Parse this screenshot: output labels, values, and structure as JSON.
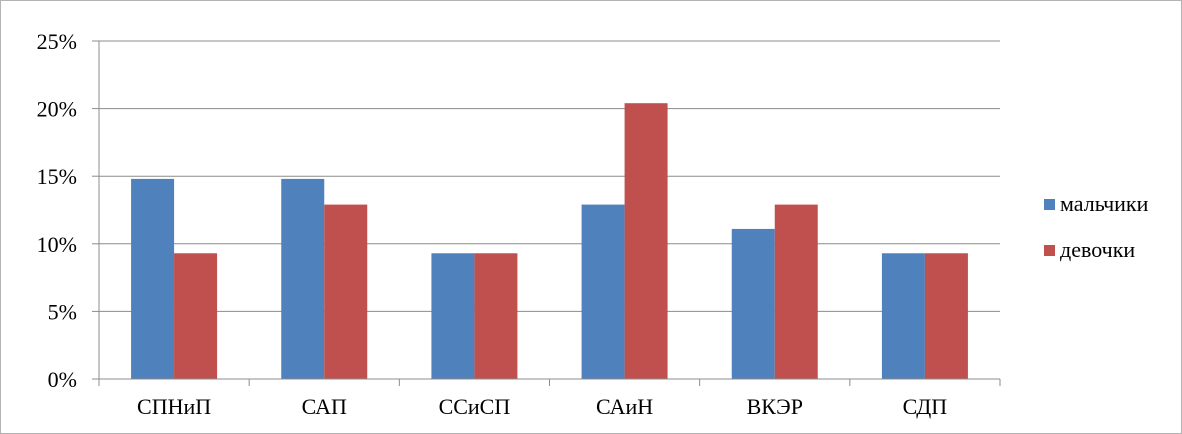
{
  "chart_data": {
    "type": "bar",
    "categories": [
      "СПНиП",
      "САП",
      "ССиСП",
      "САиН",
      "ВКЭР",
      "СДП"
    ],
    "series": [
      {
        "name": "мальчики",
        "color": "#4f81bd",
        "values": [
          14.8,
          14.8,
          9.3,
          12.9,
          11.1,
          9.3
        ]
      },
      {
        "name": "девочки",
        "color": "#c0504d",
        "values": [
          9.3,
          12.9,
          9.3,
          20.4,
          12.9,
          9.3
        ]
      }
    ],
    "ylim": [
      0,
      25
    ],
    "yticks": [
      0,
      5,
      10,
      15,
      20,
      25
    ],
    "ytick_labels": [
      "0%",
      "5%",
      "10%",
      "15%",
      "20%",
      "25%"
    ],
    "grid": true,
    "legend_position": "right"
  }
}
